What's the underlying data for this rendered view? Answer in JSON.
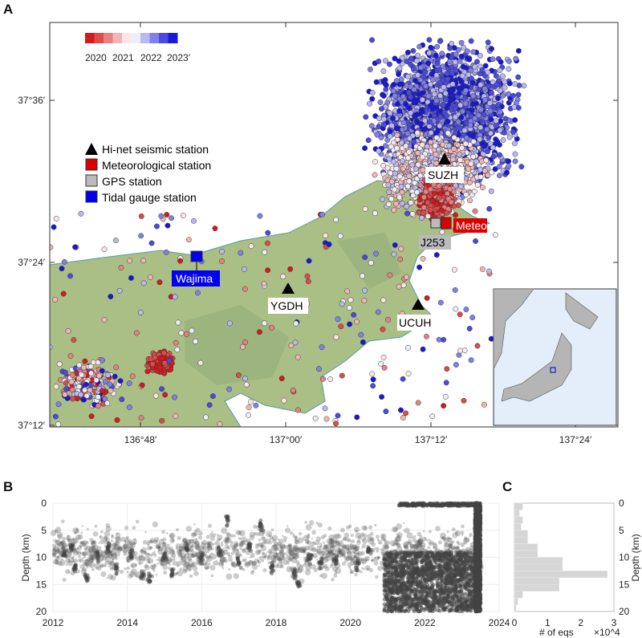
{
  "panels": {
    "a": "A",
    "b": "B",
    "c": "C"
  },
  "map": {
    "colorbar": {
      "labels": [
        "2020",
        "2021",
        "2022",
        "2023'"
      ],
      "colors": [
        "#d7191c",
        "#e04a4a",
        "#e98080",
        "#f2b5b5",
        "#fbe6e6",
        "#eeeefb",
        "#b8b8f2",
        "#8080ea",
        "#4a4ae2",
        "#1818d8"
      ]
    },
    "legend": [
      {
        "label": "Hi-net seismic station",
        "icon": "triangle",
        "color": "#000000"
      },
      {
        "label": "Meteorological station",
        "icon": "square",
        "color": "#dd0000"
      },
      {
        "label": "GPS station",
        "icon": "square",
        "color": "#bbbbbb"
      },
      {
        "label": "Tidal gauge station",
        "icon": "square",
        "color": "#0000ee"
      }
    ],
    "stations": {
      "suzh": "SUZH",
      "meteo": "Meteo",
      "j253": "J253",
      "wajima": "Wajima",
      "ygdh": "YGDH",
      "ucuh": "UCUH"
    },
    "x_ticks": [
      "136°48′",
      "137°00′",
      "137°12′",
      "137°24′"
    ],
    "y_ticks": [
      "37°36′",
      "37°24′",
      "37°12′"
    ],
    "colors": {
      "land": "#a9bf86",
      "inset_sea": "#e3eefa",
      "inset_land": "#b5b5b5"
    }
  },
  "chart_data": [
    {
      "type": "scatter",
      "panel": "B",
      "xlabel": "",
      "ylabel": "Depth (km)",
      "xlim": [
        2012,
        2024
      ],
      "ylim": [
        20,
        0
      ],
      "x_ticks": [
        "2012",
        "2014",
        "2016",
        "2018",
        "2020",
        "2022",
        "2024"
      ],
      "y_ticks": [
        "0",
        "5",
        "10",
        "15",
        "20"
      ],
      "grid": true,
      "points": [
        [
          2012.3,
          9
        ],
        [
          2012.5,
          8
        ],
        [
          2012.6,
          12
        ],
        [
          2012.9,
          14
        ],
        [
          2013.2,
          10
        ],
        [
          2013.5,
          8
        ],
        [
          2013.7,
          12
        ],
        [
          2014.1,
          9
        ],
        [
          2014.4,
          13.5
        ],
        [
          2014.6,
          14
        ],
        [
          2015.0,
          10
        ],
        [
          2015.2,
          13
        ],
        [
          2015.6,
          8
        ],
        [
          2016.0,
          10
        ],
        [
          2016.5,
          9
        ],
        [
          2016.7,
          3
        ],
        [
          2017.0,
          11
        ],
        [
          2017.3,
          8
        ],
        [
          2017.6,
          4
        ],
        [
          2017.9,
          12
        ],
        [
          2018.5,
          13
        ],
        [
          2018.6,
          15
        ],
        [
          2018.9,
          10
        ],
        [
          2019.2,
          11
        ],
        [
          2019.6,
          10.5
        ],
        [
          2020.2,
          11.5
        ],
        [
          2020.5,
          9
        ],
        [
          2021.1,
          16
        ],
        [
          2021.4,
          12
        ],
        [
          2021.8,
          13
        ],
        [
          2022.2,
          12
        ],
        [
          2022.6,
          11
        ],
        [
          2023.0,
          13
        ],
        [
          2023.4,
          0
        ],
        [
          2023.45,
          10
        ]
      ],
      "dense_events": [
        {
          "x_range": [
            2020.9,
            2023.5
          ],
          "depth_range": [
            9,
            20
          ]
        },
        {
          "x_range": [
            2021.3,
            2023.5
          ],
          "depth_range": [
            0,
            0.5
          ]
        },
        {
          "x_range": [
            2023.35,
            2023.5
          ],
          "depth_range": [
            0,
            20
          ]
        }
      ]
    },
    {
      "type": "bar",
      "panel": "C",
      "orientation": "horizontal",
      "xlabel": "# of eqs",
      "x_multiplier": "×10^4",
      "ylabel": "Depth (km)",
      "xlim": [
        0,
        3
      ],
      "ylim": [
        20,
        0
      ],
      "x_ticks": [
        "0",
        "1",
        "2",
        "3"
      ],
      "y_ticks": [
        "0",
        "5",
        "10",
        "15",
        "20"
      ],
      "bin_edges": [
        0,
        1.25,
        2.5,
        3.75,
        5,
        6.25,
        7.5,
        8.75,
        10,
        11.25,
        12.5,
        13.75,
        15,
        16.25,
        17.5,
        18.75,
        20
      ],
      "values": [
        0.25,
        0.15,
        0.25,
        0.2,
        0.4,
        0.4,
        0.7,
        0.7,
        1.45,
        1.45,
        2.8,
        1.35,
        1.35,
        0.25,
        0.1,
        0.05
      ],
      "color": "#d6d6d6"
    }
  ]
}
